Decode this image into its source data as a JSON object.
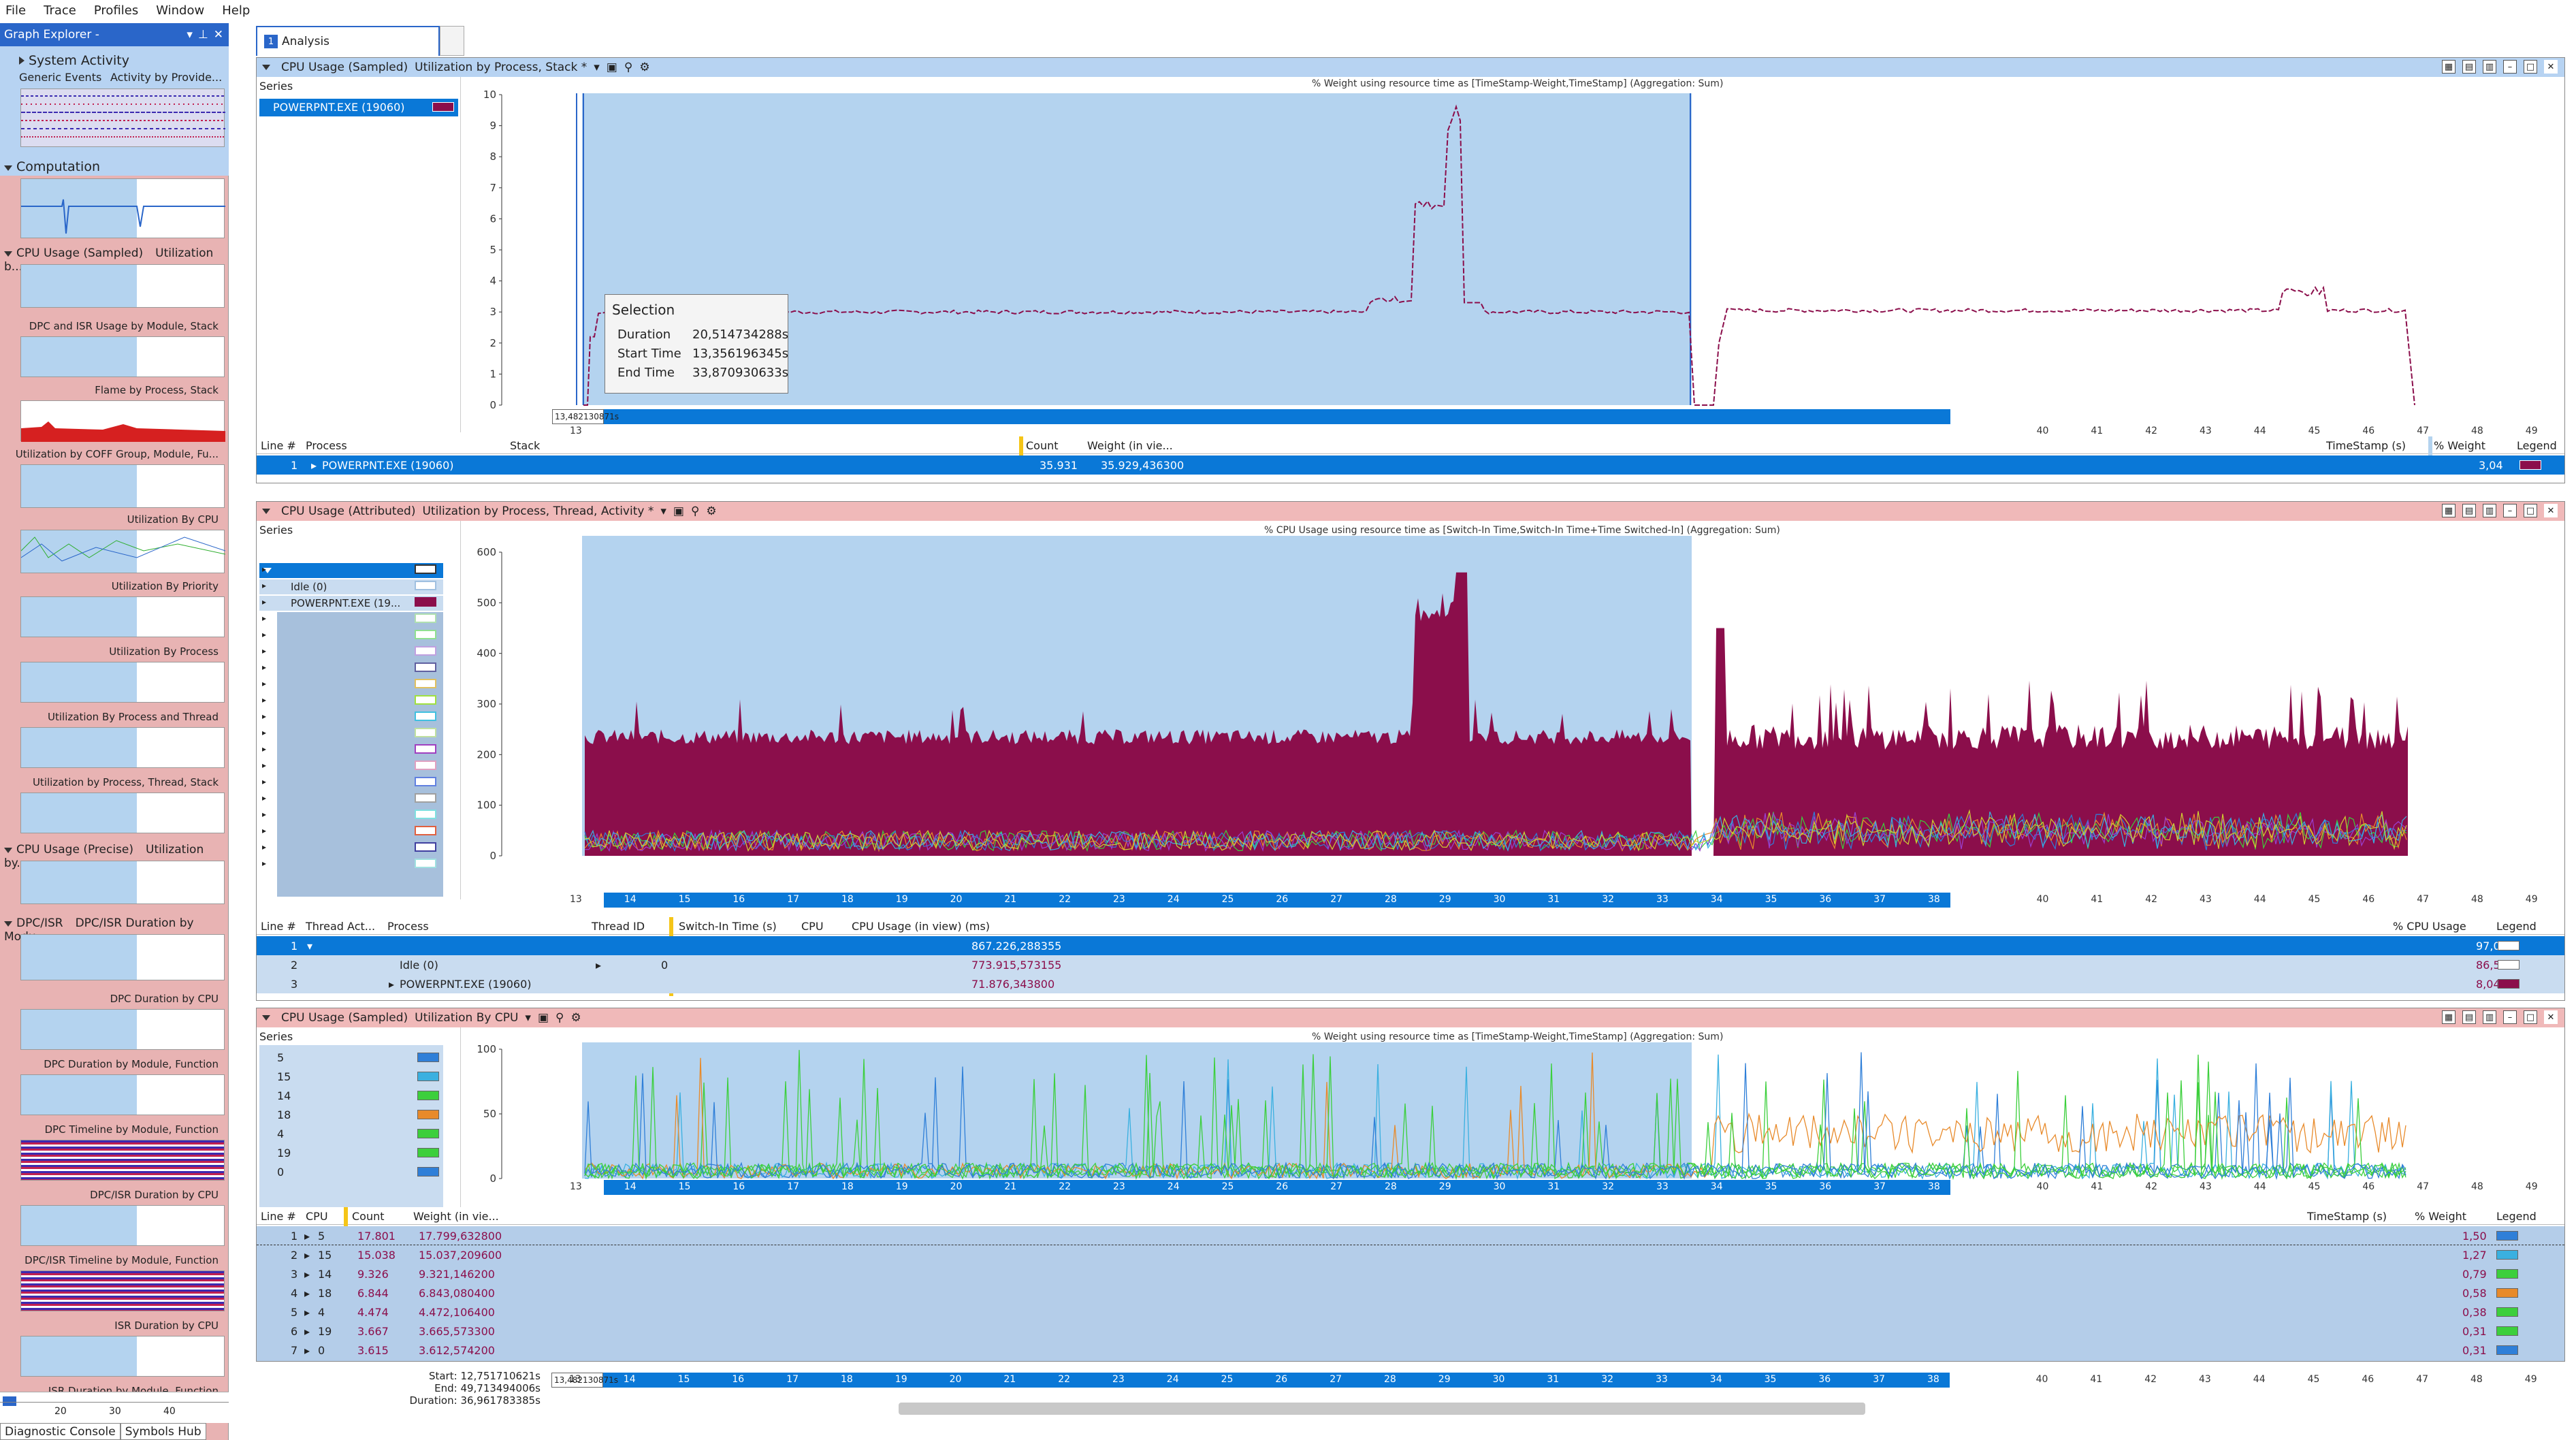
{
  "menu": [
    "File",
    "Trace",
    "Profiles",
    "Window",
    "Help"
  ],
  "graph_explorer": {
    "title": "Graph Explorer -",
    "system_activity": "System Activity",
    "sa_items": [
      "Generic Events",
      "Activity by Provide..."
    ],
    "computation": "Computation",
    "cpu_sampled": "CPU Usage (Sampled)",
    "cpu_sampled_sub": "Utilization b...",
    "items1": [
      "DPC and ISR Usage by Module, Stack",
      "Flame by Process, Stack",
      "Utilization by COFF Group, Module, Fu...",
      "Utilization By CPU",
      "Utilization By Priority",
      "Utilization By Process",
      "Utilization By Process and Thread",
      "Utilization by Process, Thread, Stack"
    ],
    "cpu_precise": "CPU Usage (Precise)",
    "cpu_precise_sub": "Utilization by...",
    "dpc": "DPC/ISR",
    "dpc_sub": "DPC/ISR Duration by Modu...",
    "items2": [
      "DPC Duration by CPU",
      "DPC Duration by Module, Function",
      "DPC Timeline by Module, Function",
      "DPC/ISR Duration by CPU",
      "DPC/ISR Timeline by Module, Function",
      "ISR Duration by CPU",
      "ISR Duration by Module, Function"
    ],
    "axis": [
      "20",
      "30",
      "40"
    ]
  },
  "tabs": {
    "analysis": "Analysis",
    "num": "1"
  },
  "panel1": {
    "type": "CPU Usage (Sampled)",
    "preset": "Utilization by Process, Stack *",
    "series_label": "Series",
    "series": "POWERPNT.EXE (19060)",
    "graph_title": "% Weight using resource time as [TimeStamp-Weight,TimeStamp] (Aggregation: Sum)",
    "yticks": [
      "10",
      "9",
      "8",
      "7",
      "6",
      "5",
      "4",
      "3",
      "2",
      "1",
      "0"
    ],
    "time_marker": "13,482130871s",
    "columns": [
      "Line #",
      "Process",
      "Stack",
      "Count",
      "Weight (in vie...",
      "TimeStamp (s)",
      "% Weight",
      "Legend"
    ],
    "sum": "Sum",
    "row": {
      "line": "1",
      "process": "POWERPNT.EXE (19060)",
      "count": "35.931",
      "weight": "35.929,436300",
      "pct": "3,04"
    }
  },
  "tooltip": {
    "title": "Selection",
    "duration_l": "Duration",
    "duration_v": "20,514734288s",
    "start_l": "Start Time",
    "start_v": "13,356196345s",
    "end_l": "End Time",
    "end_v": "33,870930633s"
  },
  "panel2": {
    "type": "CPU Usage (Attributed)",
    "preset": "Utilization by Process, Thread, Activity *",
    "series_label": "Series",
    "series": [
      "Idle (0)",
      "POWERPNT.EXE (19..."
    ],
    "graph_title": "% CPU Usage using resource time as [Switch-In Time,Switch-In Time+Time Switched-In] (Aggregation: Sum)",
    "yticks": [
      "600",
      "500",
      "400",
      "300",
      "200",
      "100",
      "0"
    ],
    "columns": [
      "Line #",
      "Thread Act...",
      "Process",
      "Thread ID",
      "Switch-In Time (s)",
      "CPU",
      "CPU Usage (in view) (ms)",
      "% CPU Usage",
      "Legend"
    ],
    "rows": [
      {
        "line": "1",
        "process": "",
        "tid": "",
        "usage": "867.226,288355",
        "pct": "97,01"
      },
      {
        "line": "2",
        "process": "Idle (0)",
        "tid": "0",
        "usage": "773.915,573155",
        "pct": "86,57"
      },
      {
        "line": "3",
        "process": "POWERPNT.EXE (19060)",
        "tid": "",
        "usage": "71.876,343800",
        "pct": "8,04"
      }
    ]
  },
  "panel3": {
    "type": "CPU Usage (Sampled)",
    "preset": "Utilization By CPU",
    "series_label": "Series",
    "series": [
      "5",
      "15",
      "14",
      "18",
      "4",
      "19",
      "0"
    ],
    "graph_title": "% Weight using resource time as [TimeStamp-Weight,TimeStamp] (Aggregation: Sum)",
    "yticks": [
      "100",
      "50",
      "0"
    ],
    "columns": [
      "Line #",
      "CPU",
      "Count",
      "Weight (in vie...",
      "TimeStamp (s)",
      "% Weight",
      "Legend"
    ],
    "rows": [
      {
        "line": "1",
        "cpu": "5",
        "count": "17.801",
        "weight": "17.799,632800",
        "pct": "1,50",
        "color": "#2f7fd8"
      },
      {
        "line": "2",
        "cpu": "15",
        "count": "15.038",
        "weight": "15.037,209600",
        "pct": "1,27",
        "color": "#3ab0e0"
      },
      {
        "line": "3",
        "cpu": "14",
        "count": "9.326",
        "weight": "9.321,146200",
        "pct": "0,79",
        "color": "#3ccf3c"
      },
      {
        "line": "4",
        "cpu": "18",
        "count": "6.844",
        "weight": "6.843,080400",
        "pct": "0,58",
        "color": "#e88a2a"
      },
      {
        "line": "5",
        "cpu": "4",
        "count": "4.474",
        "weight": "4.472,106400",
        "pct": "0,38",
        "color": "#3ccf3c"
      },
      {
        "line": "6",
        "cpu": "19",
        "count": "3.667",
        "weight": "3.665,573300",
        "pct": "0,31",
        "color": "#3ccf3c"
      },
      {
        "line": "7",
        "cpu": "0",
        "count": "3.615",
        "weight": "3.612,574200",
        "pct": "0,31",
        "color": "#2f7fd8"
      }
    ]
  },
  "timeline": {
    "ticks": [
      "13",
      "14",
      "15",
      "16",
      "17",
      "18",
      "19",
      "20",
      "21",
      "22",
      "23",
      "24",
      "25",
      "26",
      "27",
      "28",
      "29",
      "30",
      "31",
      "32",
      "33",
      "34",
      "35",
      "36",
      "37",
      "38",
      "39",
      "40",
      "41",
      "42",
      "43",
      "44",
      "45",
      "46",
      "47",
      "48",
      "49"
    ],
    "start_l": "Start:",
    "start_v": "12,751710621s",
    "end_l": "End:",
    "end_v": "49,713494006s",
    "dur_l": "Duration:",
    "dur_v": "36,961783385s",
    "marker": "13,482130871s"
  },
  "bottom": [
    "Diagnostic Console",
    "Symbols Hub"
  ],
  "colors": {
    "accent": "#0a78d7",
    "selection": "#b4d3ef",
    "powerpnt": "#8b0e4b",
    "panel_head_blue": "#b7d3f2",
    "panel_head_pink": "#f0b9b9"
  }
}
